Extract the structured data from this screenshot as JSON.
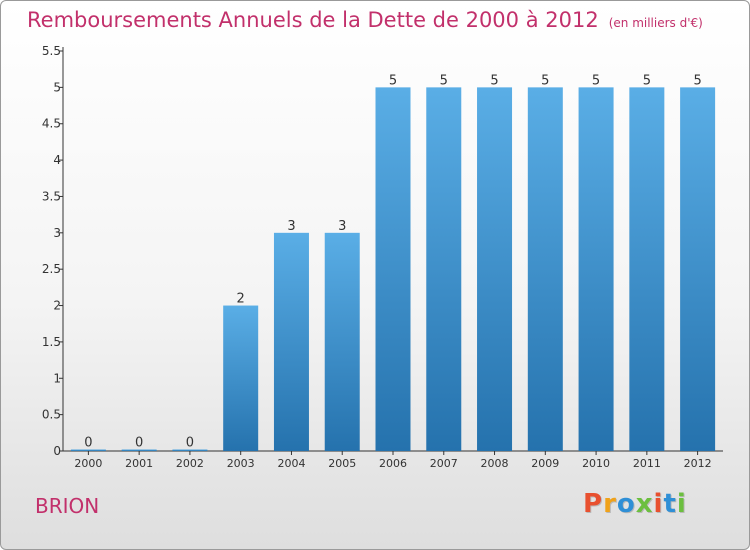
{
  "chart_data": {
    "type": "bar",
    "title": "Remboursements Annuels de la Dette de 2000 à 2012",
    "unit": "(en milliers d'€)",
    "categories": [
      "2000",
      "2001",
      "2002",
      "2003",
      "2004",
      "2005",
      "2006",
      "2007",
      "2008",
      "2009",
      "2010",
      "2011",
      "2012"
    ],
    "values": [
      0,
      0,
      0,
      2,
      3,
      3,
      5,
      5,
      5,
      5,
      5,
      5,
      5
    ],
    "value_labels": [
      "0",
      "0",
      "0",
      "2",
      "3",
      "3",
      "5",
      "5",
      "5",
      "5",
      "5",
      "5",
      "5"
    ],
    "ylim": [
      0,
      5.5
    ],
    "yticks": [
      "0",
      "0.5",
      "1",
      "1.5",
      "2",
      "2.5",
      "3",
      "3.5",
      "4",
      "4.5",
      "5",
      "5.5"
    ],
    "grid": false,
    "colors": {
      "bar_top": "#5aaee6",
      "bar_bottom": "#2572ad",
      "title": "#c2306b"
    }
  },
  "commune": "BRION",
  "logo": {
    "letters": [
      "P",
      "r",
      "o",
      "x",
      "i",
      "t",
      "i"
    ],
    "colors": [
      "#e8502f",
      "#f0a21a",
      "#2f8fd6",
      "#6cbf3f",
      "#e8502f",
      "#2f8fd6",
      "#6cbf3f"
    ]
  }
}
